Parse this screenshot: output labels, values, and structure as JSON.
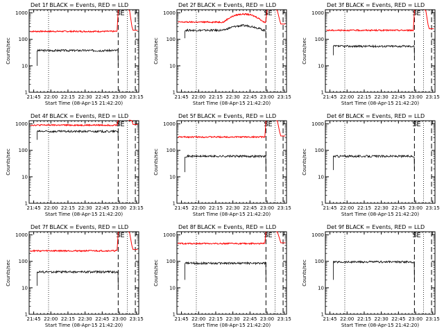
{
  "chart_data": [
    {
      "type": "line",
      "title": "Det 1f BLACK = Events, RED = LLD",
      "xlabel": "Start Time (08-Apr-15 21:42:20)",
      "ylabel": "Counts/sec",
      "ylog": true,
      "ylim": [
        1,
        1000
      ],
      "yticks": [
        "1",
        "10",
        "100",
        "1000"
      ],
      "xlim_min": [
        -1,
        95
      ],
      "xtick_labels": [
        "21:45",
        "22:00",
        "22:15",
        "22:30",
        "22:45",
        "23:00",
        "23:15"
      ],
      "events": {
        "start": 6,
        "end": 77,
        "level": 38,
        "spike_start": 10
      },
      "lld": {
        "start": 0,
        "end": 76,
        "level": 200,
        "rise_to": 1200,
        "peak_at": 86,
        "tail_level": 220,
        "tail_end": 94
      },
      "markers": [
        {
          "label": "S",
          "x": 77
        },
        {
          "label": "E",
          "x": 80
        }
      ],
      "dashed_lines": [
        77,
        92
      ],
      "dotted_lines": [
        16,
        85
      ]
    },
    {
      "type": "line",
      "title": "Det 2f BLACK = Events, RED = LLD",
      "xlabel": "Start Time (08-Apr-15 21:42:20)",
      "ylabel": "Counts/sec",
      "ylog": true,
      "ylim": [
        1,
        1000
      ],
      "yticks": [
        "1",
        "10",
        "100",
        "1000"
      ],
      "xlim_min": [
        -1,
        95
      ],
      "xtick_labels": [
        "21:45",
        "22:00",
        "22:15",
        "22:30",
        "22:45",
        "23:00",
        "23:15"
      ],
      "events": {
        "start": 6,
        "end": 77,
        "level": 220,
        "bump": 330,
        "spike_start": 110
      },
      "lld": {
        "start": 0,
        "end": 77,
        "level": 450,
        "bump": 900,
        "rise_to": 1200,
        "peak_at": 86,
        "tail_level": 380,
        "tail_end": 94
      },
      "markers": [
        {
          "label": "S",
          "x": 77
        },
        {
          "label": "E",
          "x": 80
        }
      ],
      "dashed_lines": [
        77,
        92
      ],
      "dotted_lines": [
        16,
        85
      ]
    },
    {
      "type": "line",
      "title": "Det 3f BLACK = Events, RED = LLD",
      "xlabel": "Start Time (08-Apr-15 21:42:20)",
      "ylabel": "Counts/sec",
      "ylog": true,
      "ylim": [
        1,
        1000
      ],
      "yticks": [
        "1",
        "10",
        "100",
        "1000"
      ],
      "xlim_min": [
        -1,
        95
      ],
      "xtick_labels": [
        "21:45",
        "22:00",
        "22:15",
        "22:30",
        "22:45",
        "23:00",
        "23:15"
      ],
      "events": {
        "start": 6,
        "end": 77,
        "level": 55,
        "spike_start": 25
      },
      "lld": {
        "start": 0,
        "end": 76,
        "level": 220,
        "rise_to": 1200,
        "peak_at": 86,
        "tail_level": 250,
        "tail_end": 94
      },
      "markers": [
        {
          "label": "S",
          "x": 77
        },
        {
          "label": "E",
          "x": 80
        }
      ],
      "dashed_lines": [
        77,
        92
      ],
      "dotted_lines": [
        16,
        85
      ]
    },
    {
      "type": "line",
      "title": "Det 4f BLACK = Events, RED = LLD",
      "xlabel": "Start Time (08-Apr-15 21:42:20)",
      "ylabel": "Counts/sec",
      "ylog": true,
      "ylim": [
        1,
        1000
      ],
      "yticks": [
        "1",
        "10",
        "100",
        "1000"
      ],
      "xlim_min": [
        -1,
        95
      ],
      "xtick_labels": [
        "21:45",
        "22:00",
        "22:15",
        "22:30",
        "22:45",
        "23:00",
        "23:15"
      ],
      "events": {
        "start": 6,
        "end": 77,
        "level": 520,
        "spike_start": 250
      },
      "lld": {
        "start": 0,
        "end": 76,
        "level": 900,
        "rise_to": 1400,
        "peak_at": 86,
        "tail_level": 950,
        "tail_end": 94
      },
      "markers": [
        {
          "label": "S",
          "x": 77
        },
        {
          "label": "E",
          "x": 80
        }
      ],
      "dashed_lines": [
        77,
        92
      ],
      "dotted_lines": [
        16,
        85
      ]
    },
    {
      "type": "line",
      "title": "Det 5f BLACK = Events, RED = LLD",
      "xlabel": "Start Time (08-Apr-15 21:42:20)",
      "ylabel": "Counts/sec",
      "ylog": true,
      "ylim": [
        1,
        1000
      ],
      "yticks": [
        "1",
        "10",
        "100",
        "1000"
      ],
      "xlim_min": [
        -1,
        95
      ],
      "xtick_labels": [
        "21:45",
        "22:00",
        "22:15",
        "22:30",
        "22:45",
        "23:00",
        "23:15"
      ],
      "events": {
        "start": 6,
        "end": 77,
        "level": 60,
        "spike_start": 15
      },
      "lld": {
        "start": 0,
        "end": 76,
        "level": 320,
        "rise_to": 1300,
        "peak_at": 86,
        "tail_level": 350,
        "tail_end": 94
      },
      "markers": [
        {
          "label": "S",
          "x": 77
        },
        {
          "label": "E",
          "x": 80
        }
      ],
      "dashed_lines": [
        77,
        92
      ],
      "dotted_lines": [
        16,
        85
      ]
    },
    {
      "type": "line",
      "title": "Det 6f BLACK = Events, RED = LLD",
      "xlabel": "Start Time (08-Apr-15 21:42:20)",
      "ylabel": "Counts/sec",
      "ylog": true,
      "ylim": [
        1,
        1000
      ],
      "yticks": [
        "1",
        "10",
        "100",
        "1000"
      ],
      "xlim_min": [
        -1,
        95
      ],
      "xtick_labels": [
        "21:45",
        "22:00",
        "22:15",
        "22:30",
        "22:45",
        "23:00",
        "23:15"
      ],
      "events": {
        "start": 6,
        "end": 77,
        "level": 60,
        "spike_start": 18
      },
      "lld": null,
      "markers": [
        {
          "label": "S",
          "x": 77
        },
        {
          "label": "E",
          "x": 80
        }
      ],
      "dashed_lines": [
        77,
        92
      ],
      "dotted_lines": [
        16,
        85
      ]
    },
    {
      "type": "line",
      "title": "Det 7f BLACK = Events, RED = LLD",
      "xlabel": "Start Time (08-Apr-15 21:42:20)",
      "ylabel": "Counts/sec",
      "ylog": true,
      "ylim": [
        1,
        1000
      ],
      "yticks": [
        "1",
        "10",
        "100",
        "1000"
      ],
      "xlim_min": [
        -1,
        95
      ],
      "xtick_labels": [
        "21:45",
        "22:00",
        "22:15",
        "22:30",
        "22:45",
        "23:00",
        "23:15"
      ],
      "events": {
        "start": 6,
        "end": 77,
        "level": 40,
        "spike_start": 12
      },
      "lld": {
        "start": 0,
        "end": 76,
        "level": 250,
        "rise_to": 1200,
        "peak_at": 86,
        "tail_level": 280,
        "tail_end": 94
      },
      "markers": [
        {
          "label": "S",
          "x": 77
        },
        {
          "label": "E",
          "x": 80
        }
      ],
      "dashed_lines": [
        77,
        92
      ],
      "dotted_lines": [
        16,
        85
      ]
    },
    {
      "type": "line",
      "title": "Det 8f BLACK = Events, RED = LLD",
      "xlabel": "Start Time (08-Apr-15 21:42:20)",
      "ylabel": "Counts/sec",
      "ylog": true,
      "ylim": [
        1,
        1000
      ],
      "yticks": [
        "1",
        "10",
        "100",
        "1000"
      ],
      "xlim_min": [
        -1,
        95
      ],
      "xtick_labels": [
        "21:45",
        "22:00",
        "22:15",
        "22:30",
        "22:45",
        "23:00",
        "23:15"
      ],
      "events": {
        "start": 6,
        "end": 77,
        "level": 85,
        "spike_start": 20
      },
      "lld": {
        "start": 0,
        "end": 76,
        "level": 470,
        "rise_to": 1300,
        "peak_at": 86,
        "tail_level": 500,
        "tail_end": 94
      },
      "markers": [
        {
          "label": "S",
          "x": 77
        },
        {
          "label": "E",
          "x": 80
        }
      ],
      "dashed_lines": [
        77,
        92
      ],
      "dotted_lines": [
        16,
        85
      ]
    },
    {
      "type": "line",
      "title": "Det 9f BLACK = Events, RED = LLD",
      "xlabel": "Start Time (08-Apr-15 21:42:20)",
      "ylabel": "Counts/sec",
      "ylog": true,
      "ylim": [
        1,
        1000
      ],
      "yticks": [
        "1",
        "10",
        "100",
        "1000"
      ],
      "xlim_min": [
        -1,
        95
      ],
      "xtick_labels": [
        "21:45",
        "22:00",
        "22:15",
        "22:30",
        "22:45",
        "23:00",
        "23:15"
      ],
      "events": {
        "start": 6,
        "end": 77,
        "level": 95,
        "spike_start": 20
      },
      "lld": null,
      "markers": [
        {
          "label": "S",
          "x": 77
        },
        {
          "label": "E",
          "x": 80
        }
      ],
      "dashed_lines": [
        77,
        92
      ],
      "dotted_lines": [
        16,
        85
      ]
    }
  ],
  "colors": {
    "events": "#000000",
    "lld": "#ff0000"
  }
}
